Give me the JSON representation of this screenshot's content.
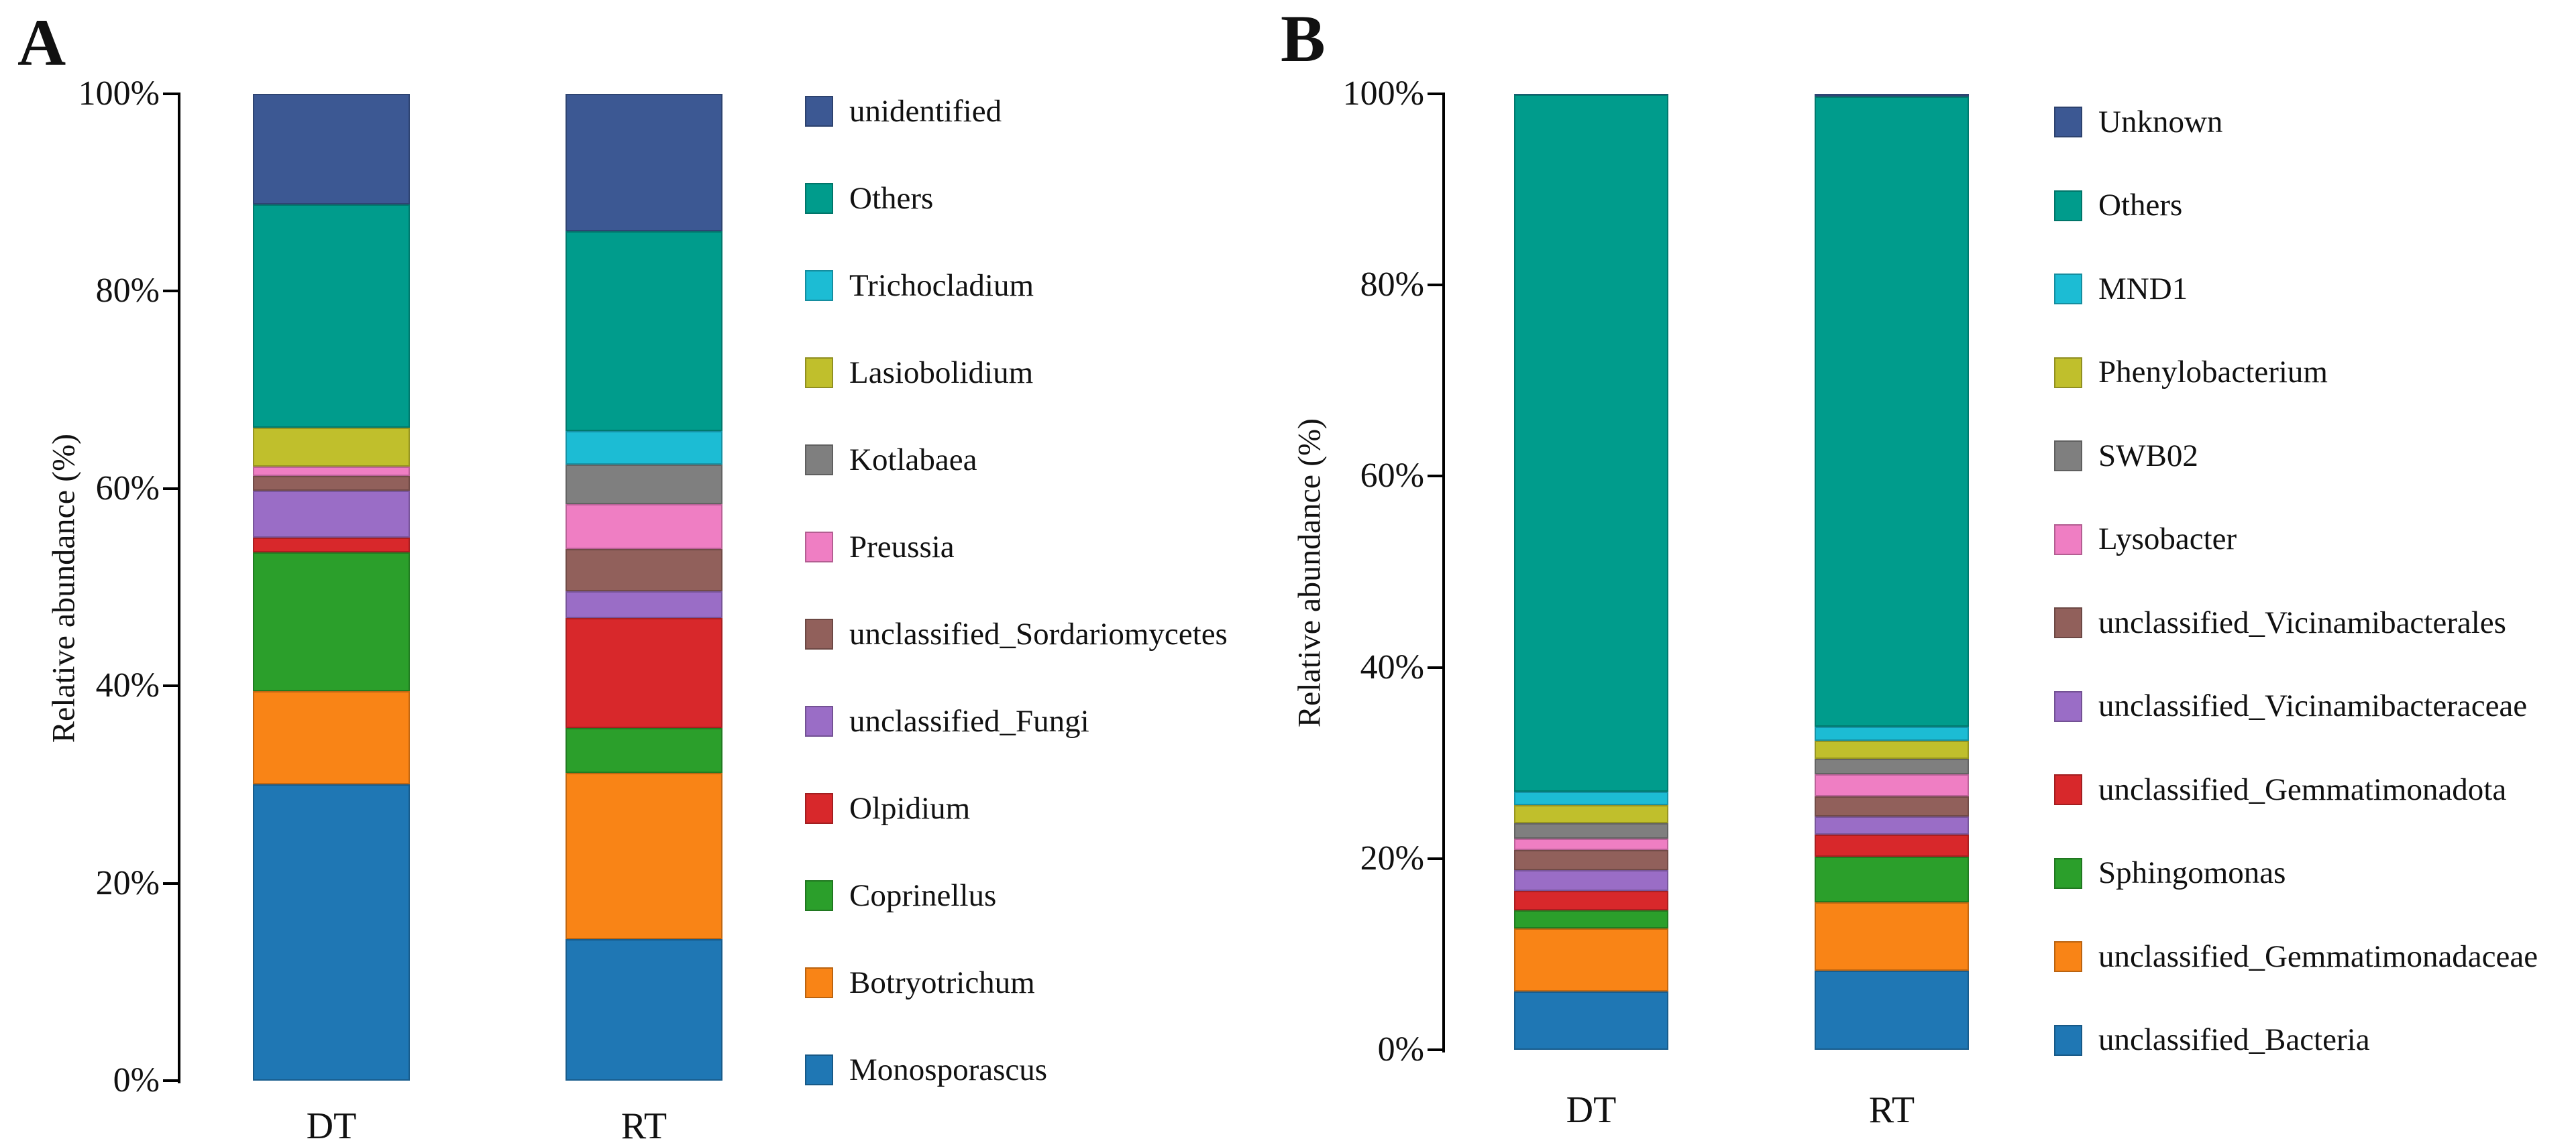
{
  "figure_description": "Two-panel stacked bar chart of microbial relative abundance (%) for samples DT and RT; panel A fungal genera, panel B bacterial genera",
  "chart_data": [
    {
      "type": "bar",
      "stacked": true,
      "panel_label": "A",
      "ylabel": "Relative abundance (%)",
      "xlabel": "",
      "ylim": [
        0,
        100
      ],
      "yticks": [
        0,
        20,
        40,
        60,
        80,
        100
      ],
      "ytick_labels": [
        "0%",
        "20%",
        "40%",
        "60%",
        "80%",
        "100%"
      ],
      "categories": [
        "DT",
        "RT"
      ],
      "grid": false,
      "legend_position": "right",
      "stack_note": "series listed top-to-bottom in stacking and legend order; values are percent",
      "series": [
        {
          "name": "unidentified",
          "color": "#3C5893",
          "values": [
            11.2,
            13.9
          ]
        },
        {
          "name": "Others",
          "color": "#009C8C",
          "values": [
            22.6,
            20.3
          ]
        },
        {
          "name": "Trichocladium",
          "color": "#1CBCD4",
          "values": [
            0.0,
            3.4
          ]
        },
        {
          "name": "Lasiobolidium",
          "color": "#C0BF2C",
          "values": [
            4.0,
            0.0
          ]
        },
        {
          "name": "Kotlabaea",
          "color": "#7F7F7F",
          "values": [
            0.0,
            4.0
          ]
        },
        {
          "name": "Preussia",
          "color": "#EF7EC3",
          "values": [
            0.9,
            4.5
          ]
        },
        {
          "name": "unclassified_Sordariomycetes",
          "color": "#91605B",
          "values": [
            1.5,
            4.3
          ]
        },
        {
          "name": "unclassified_Fungi",
          "color": "#9A6DC6",
          "values": [
            4.8,
            2.7
          ]
        },
        {
          "name": "Olpidium",
          "color": "#D8282B",
          "values": [
            1.5,
            11.2
          ]
        },
        {
          "name": "Coprinellus",
          "color": "#2B9F2B",
          "values": [
            14.0,
            4.5
          ]
        },
        {
          "name": "Botryotrichum",
          "color": "#F98416",
          "values": [
            9.5,
            16.9
          ]
        },
        {
          "name": "Monosporascus",
          "color": "#1F77B4",
          "values": [
            30.0,
            14.3
          ]
        }
      ]
    },
    {
      "type": "bar",
      "stacked": true,
      "panel_label": "B",
      "ylabel": "Relative abundance (%)",
      "xlabel": "",
      "ylim": [
        0,
        100
      ],
      "yticks": [
        0,
        20,
        40,
        60,
        80,
        100
      ],
      "ytick_labels": [
        "0%",
        "20%",
        "40%",
        "60%",
        "80%",
        "100%"
      ],
      "categories": [
        "DT",
        "RT"
      ],
      "grid": false,
      "legend_position": "right",
      "stack_note": "series listed top-to-bottom in stacking and legend order; values are percent",
      "series": [
        {
          "name": "Unknown",
          "color": "#3C5893",
          "values": [
            0.1,
            0.3
          ]
        },
        {
          "name": "Others",
          "color": "#009C8C",
          "values": [
            72.9,
            65.9
          ]
        },
        {
          "name": "MND1",
          "color": "#1CBCD4",
          "values": [
            1.4,
            1.5
          ]
        },
        {
          "name": "Phenylobacterium",
          "color": "#C0BF2C",
          "values": [
            1.9,
            1.9
          ]
        },
        {
          "name": "SWB02",
          "color": "#7F7F7F",
          "values": [
            1.6,
            1.6
          ]
        },
        {
          "name": "Lysobacter",
          "color": "#EF7EC3",
          "values": [
            1.2,
            2.3
          ]
        },
        {
          "name": "unclassified_Vicinamibacterales",
          "color": "#91605B",
          "values": [
            2.1,
            2.1
          ]
        },
        {
          "name": "unclassified_Vicinamibacteraceae",
          "color": "#9A6DC6",
          "values": [
            2.2,
            1.9
          ]
        },
        {
          "name": "unclassified_Gemmatimonadota",
          "color": "#D8282B",
          "values": [
            2.0,
            2.3
          ]
        },
        {
          "name": "Sphingomonas",
          "color": "#2B9F2B",
          "values": [
            1.9,
            4.8
          ]
        },
        {
          "name": "unclassified_Gemmatimonadaceae",
          "color": "#F98416",
          "values": [
            6.6,
            7.1
          ]
        },
        {
          "name": "unclassified_Bacteria",
          "color": "#1F77B4",
          "values": [
            6.1,
            8.3
          ]
        }
      ]
    }
  ]
}
